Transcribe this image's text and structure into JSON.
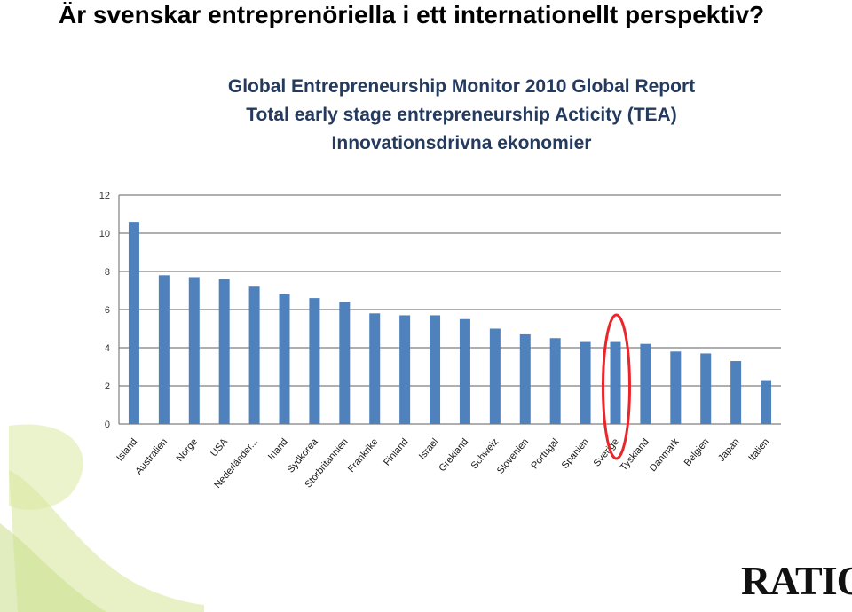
{
  "slide": {
    "title": "Är svenskar entreprenöriella i ett internationellt perspektiv?",
    "brand": "RATIO"
  },
  "colors": {
    "bar": "#4f81bd",
    "grid": "#7f7f7f",
    "highlight": "#e8262b",
    "title": "#243a5e",
    "logo_leaf": "#cfe08a"
  },
  "icons": {
    "background": "ratio-leaf-logo-icon",
    "highlight": "red-ellipse-highlight"
  },
  "chart_data": {
    "type": "bar",
    "title_lines": [
      "Global Entrepreneurship Monitor 2010 Global Report",
      "Total early stage entrepreneurship Acticity (TEA)",
      "Innovationsdrivna ekonomier"
    ],
    "categories": [
      "Island",
      "Australien",
      "Norge",
      "USA",
      "Nederländer...",
      "Irland",
      "Sydkorea",
      "Storbritannien",
      "Frankrike",
      "Finland",
      "Israel",
      "Grekland",
      "Schweiz",
      "Slovenien",
      "Portugal",
      "Spanien",
      "Sverige",
      "Tyskland",
      "Danmark",
      "Belgien",
      "Japan",
      "Italien"
    ],
    "values": [
      10.6,
      7.8,
      7.7,
      7.6,
      7.2,
      6.8,
      6.6,
      6.4,
      5.8,
      5.7,
      5.7,
      5.5,
      5.0,
      4.7,
      4.5,
      4.3,
      4.3,
      4.2,
      3.8,
      3.7,
      3.3,
      2.3
    ],
    "yticks": [
      0,
      2,
      4,
      6,
      8,
      10,
      12
    ],
    "ylim": [
      0,
      12
    ],
    "grid": true,
    "legend": "none",
    "highlight_category": "Sverige"
  }
}
